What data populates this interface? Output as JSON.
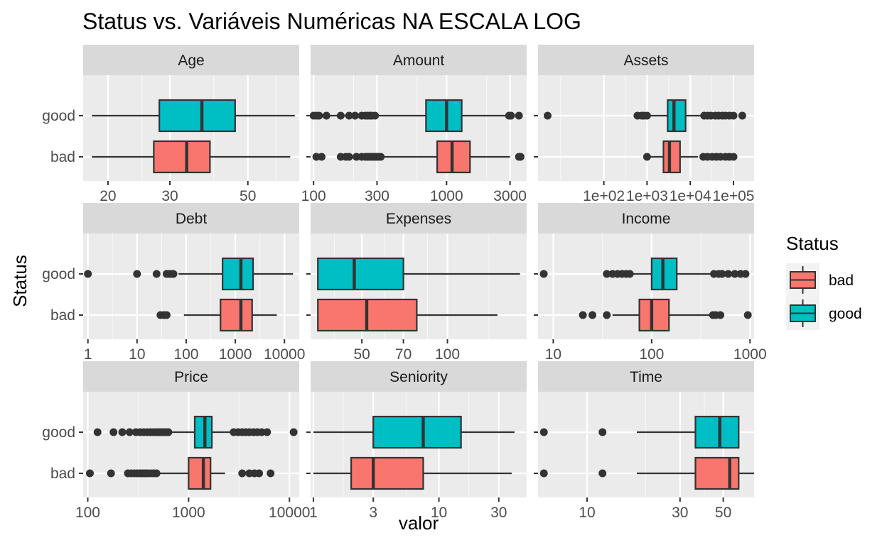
{
  "title": "Status vs. Variáveis Numéricas NA ESCALA LOG",
  "chart_data": {
    "type": "boxplot",
    "title": "Status vs. Variáveis Numéricas NA ESCALA LOG",
    "xlabel": "valor",
    "ylabel": "Status",
    "x_scale": "log10",
    "facet_scales": "free_x",
    "categories": [
      "good",
      "bad"
    ],
    "colors": {
      "bad": "#F8766D",
      "good": "#00BFC4",
      "outlier": "#333333"
    },
    "legend": {
      "title": "Status",
      "position": "right",
      "entries": [
        "bad",
        "good"
      ]
    },
    "panels": [
      {
        "name": "Age",
        "xlim": [
          17,
          70
        ],
        "breaks": [
          20,
          30,
          50
        ],
        "tick_labels": [
          "20",
          "30",
          "50"
        ],
        "minor_breaks": [
          25,
          40,
          60
        ],
        "series": [
          {
            "name": "good",
            "box": [
              18,
              28,
              37,
              46,
              68
            ],
            "outliers": []
          },
          {
            "name": "bad",
            "box": [
              18,
              27,
              33.5,
              39,
              66
            ],
            "outliers": []
          }
        ]
      },
      {
        "name": "Amount",
        "xlim": [
          95,
          4000
        ],
        "breaks": [
          100,
          300,
          1000,
          3000
        ],
        "tick_labels": [
          "100",
          "300",
          "1000",
          "3000"
        ],
        "minor_breaks": [
          200,
          600,
          2000
        ],
        "series": [
          {
            "name": "good",
            "box": [
              100,
              700,
              1000,
              1300,
              2900
            ],
            "outliers": [
              100,
              105,
              110,
              125,
              160,
              185,
              205,
              230,
              245,
              255,
              265,
              275,
              290,
              2950,
              3050,
              3500
            ]
          },
          {
            "name": "bad",
            "box": [
              330,
              850,
              1100,
              1500,
              3000
            ],
            "outliers": [
              105,
              115,
              160,
              175,
              185,
              210,
              230,
              245,
              255,
              265,
              275,
              285,
              295,
              305,
              320,
              3500,
              3600
            ]
          }
        ]
      },
      {
        "name": "Assets",
        "xlim": [
          3,
          300000
        ],
        "breaks": [
          100,
          1000,
          10000,
          100000
        ],
        "tick_labels": [
          "1e+02",
          "1e+03",
          "1e+04",
          "1e+05"
        ],
        "minor_breaks": [
          10,
          316,
          3162,
          31623
        ],
        "series": [
          {
            "name": "good",
            "box": [
              1100,
              3000,
              4200,
              7800,
              20000
            ],
            "outliers": [
              5,
              600,
              750,
              850,
              1000,
              21000,
              25000,
              30000,
              38000,
              45000,
              55000,
              65000,
              80000,
              100000,
              160000
            ]
          },
          {
            "name": "bad",
            "box": [
              1200,
              2400,
              3300,
              5800,
              15000
            ],
            "outliers": [
              1000,
              20000,
              25000,
              32000,
              40000,
              50000,
              65000,
              80000,
              100000
            ]
          }
        ]
      },
      {
        "name": "Debt",
        "xlim": [
          0.8,
          20000
        ],
        "breaks": [
          1,
          10,
          100,
          1000,
          10000
        ],
        "tick_labels": [
          "1",
          "10",
          "100",
          "1000",
          "10000"
        ],
        "minor_breaks": [
          3.16,
          31.6,
          316,
          3162
        ],
        "series": [
          {
            "name": "good",
            "box": [
              70,
              550,
              1300,
              2300,
              15000
            ],
            "outliers": [
              1,
              10,
              25,
              40,
              45,
              50,
              55
            ]
          },
          {
            "name": "bad",
            "box": [
              90,
              500,
              1300,
              2200,
              7000
            ],
            "outliers": [
              30,
              35,
              40
            ]
          }
        ]
      },
      {
        "name": "Expenses",
        "xlim": [
          33,
          190
        ],
        "breaks": [
          50,
          70,
          100
        ],
        "tick_labels": [
          "50",
          "70",
          "100"
        ],
        "minor_breaks": [
          40,
          60,
          85,
          140
        ],
        "series": [
          {
            "name": "good",
            "box": [
              35,
              35,
              47,
              70,
              180
            ],
            "outliers": []
          },
          {
            "name": "bad",
            "box": [
              35,
              35,
              52,
              78,
              150
            ],
            "outliers": []
          }
        ]
      },
      {
        "name": "Income",
        "xlim": [
          7,
          1100
        ],
        "breaks": [
          10,
          100,
          1000
        ],
        "tick_labels": [
          "10",
          "100",
          "1000"
        ],
        "minor_breaks": [
          31.6,
          316
        ],
        "series": [
          {
            "name": "good",
            "box": [
              60,
              100,
              130,
              180,
              420
            ],
            "outliers": [
              8,
              35,
              40,
              45,
              50,
              55,
              60,
              430,
              480,
              520,
              600,
              700,
              800,
              900
            ]
          },
          {
            "name": "bad",
            "box": [
              40,
              75,
              100,
              150,
              400
            ],
            "outliers": [
              20,
              25,
              35,
              420,
              450,
              500,
              950
            ]
          }
        ]
      },
      {
        "name": "Price",
        "xlim": [
          90,
          12500
        ],
        "breaks": [
          100,
          1000,
          10000
        ],
        "tick_labels": [
          "100",
          "1000",
          "10000"
        ],
        "minor_breaks": [
          316,
          3162
        ],
        "series": [
          {
            "name": "good",
            "box": [
              650,
              1150,
              1450,
              1700,
              2700
            ],
            "outliers": [
              125,
              180,
              220,
              260,
              300,
              330,
              360,
              390,
              420,
              450,
              480,
              510,
              540,
              570,
              600,
              630,
              2800,
              3100,
              3400,
              3700,
              4000,
              4400,
              4800,
              5300,
              6000,
              11000
            ]
          },
          {
            "name": "bad",
            "box": [
              500,
              1000,
              1400,
              1650,
              2300
            ],
            "outliers": [
              105,
              170,
              250,
              270,
              290,
              310,
              330,
              350,
              370,
              390,
              420,
              450,
              480,
              3400,
              4000,
              4500,
              5000,
              6500
            ]
          }
        ]
      },
      {
        "name": "Seniority",
        "xlim": [
          0.95,
          50
        ],
        "breaks": [
          1,
          3,
          10,
          30
        ],
        "tick_labels": [
          "1",
          "3",
          "10",
          "30"
        ],
        "minor_breaks": [
          1.73,
          5.48,
          17.3
        ],
        "series": [
          {
            "name": "good",
            "box": [
              1,
              3,
              7.5,
              15,
              40
            ],
            "outliers": []
          },
          {
            "name": "bad",
            "box": [
              1,
              2,
              3,
              7.5,
              38
            ],
            "outliers": []
          }
        ]
      },
      {
        "name": "Time",
        "xlim": [
          5.6,
          72
        ],
        "breaks": [
          10,
          30,
          50
        ],
        "tick_labels": [
          "10",
          "30",
          "50"
        ],
        "minor_breaks": [
          20,
          40
        ],
        "series": [
          {
            "name": "good",
            "box": [
              18,
              36,
              48,
              60,
              60
            ],
            "outliers": [
              6,
              12
            ]
          },
          {
            "name": "bad",
            "box": [
              18,
              36,
              54,
              60,
              72
            ],
            "outliers": [
              6,
              12
            ]
          }
        ]
      }
    ]
  }
}
